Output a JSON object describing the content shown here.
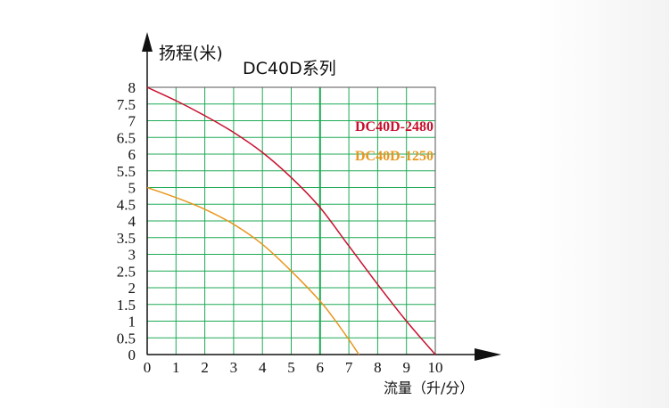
{
  "chart_data": {
    "type": "line",
    "title": "DC40D系列",
    "xlabel": "流量（升/分）",
    "ylabel": "扬程(米)",
    "xlim": [
      0,
      10
    ],
    "ylim": [
      0,
      8
    ],
    "x_ticks": [
      "0",
      "1",
      "2",
      "3",
      "4",
      "5",
      "6",
      "7",
      "8",
      "9",
      "10"
    ],
    "y_ticks": [
      "0",
      "0.5",
      "1",
      "1.5",
      "2",
      "2.5",
      "3",
      "3.5",
      "4",
      "4.5",
      "5",
      "5.5",
      "6",
      "6.5",
      "7",
      "7.5",
      "8"
    ],
    "grid": true,
    "legend_position": "top-right",
    "series": [
      {
        "name": "DC40D-2480",
        "color": "#c8102e",
        "points": [
          [
            0,
            8.0
          ],
          [
            1,
            7.6
          ],
          [
            2,
            7.15
          ],
          [
            3,
            6.65
          ],
          [
            4,
            6.05
          ],
          [
            5,
            5.3
          ],
          [
            6,
            4.4
          ],
          [
            7,
            3.25
          ],
          [
            8,
            2.1
          ],
          [
            9,
            1.0
          ],
          [
            10,
            0.0
          ]
        ]
      },
      {
        "name": "DC40D-1250",
        "color": "#e8961e",
        "points": [
          [
            0,
            5.0
          ],
          [
            1,
            4.7
          ],
          [
            2,
            4.35
          ],
          [
            3,
            3.9
          ],
          [
            4,
            3.3
          ],
          [
            5,
            2.5
          ],
          [
            6,
            1.6
          ],
          [
            6.5,
            1.05
          ],
          [
            7,
            0.45
          ],
          [
            7.35,
            0.0
          ]
        ]
      }
    ]
  }
}
